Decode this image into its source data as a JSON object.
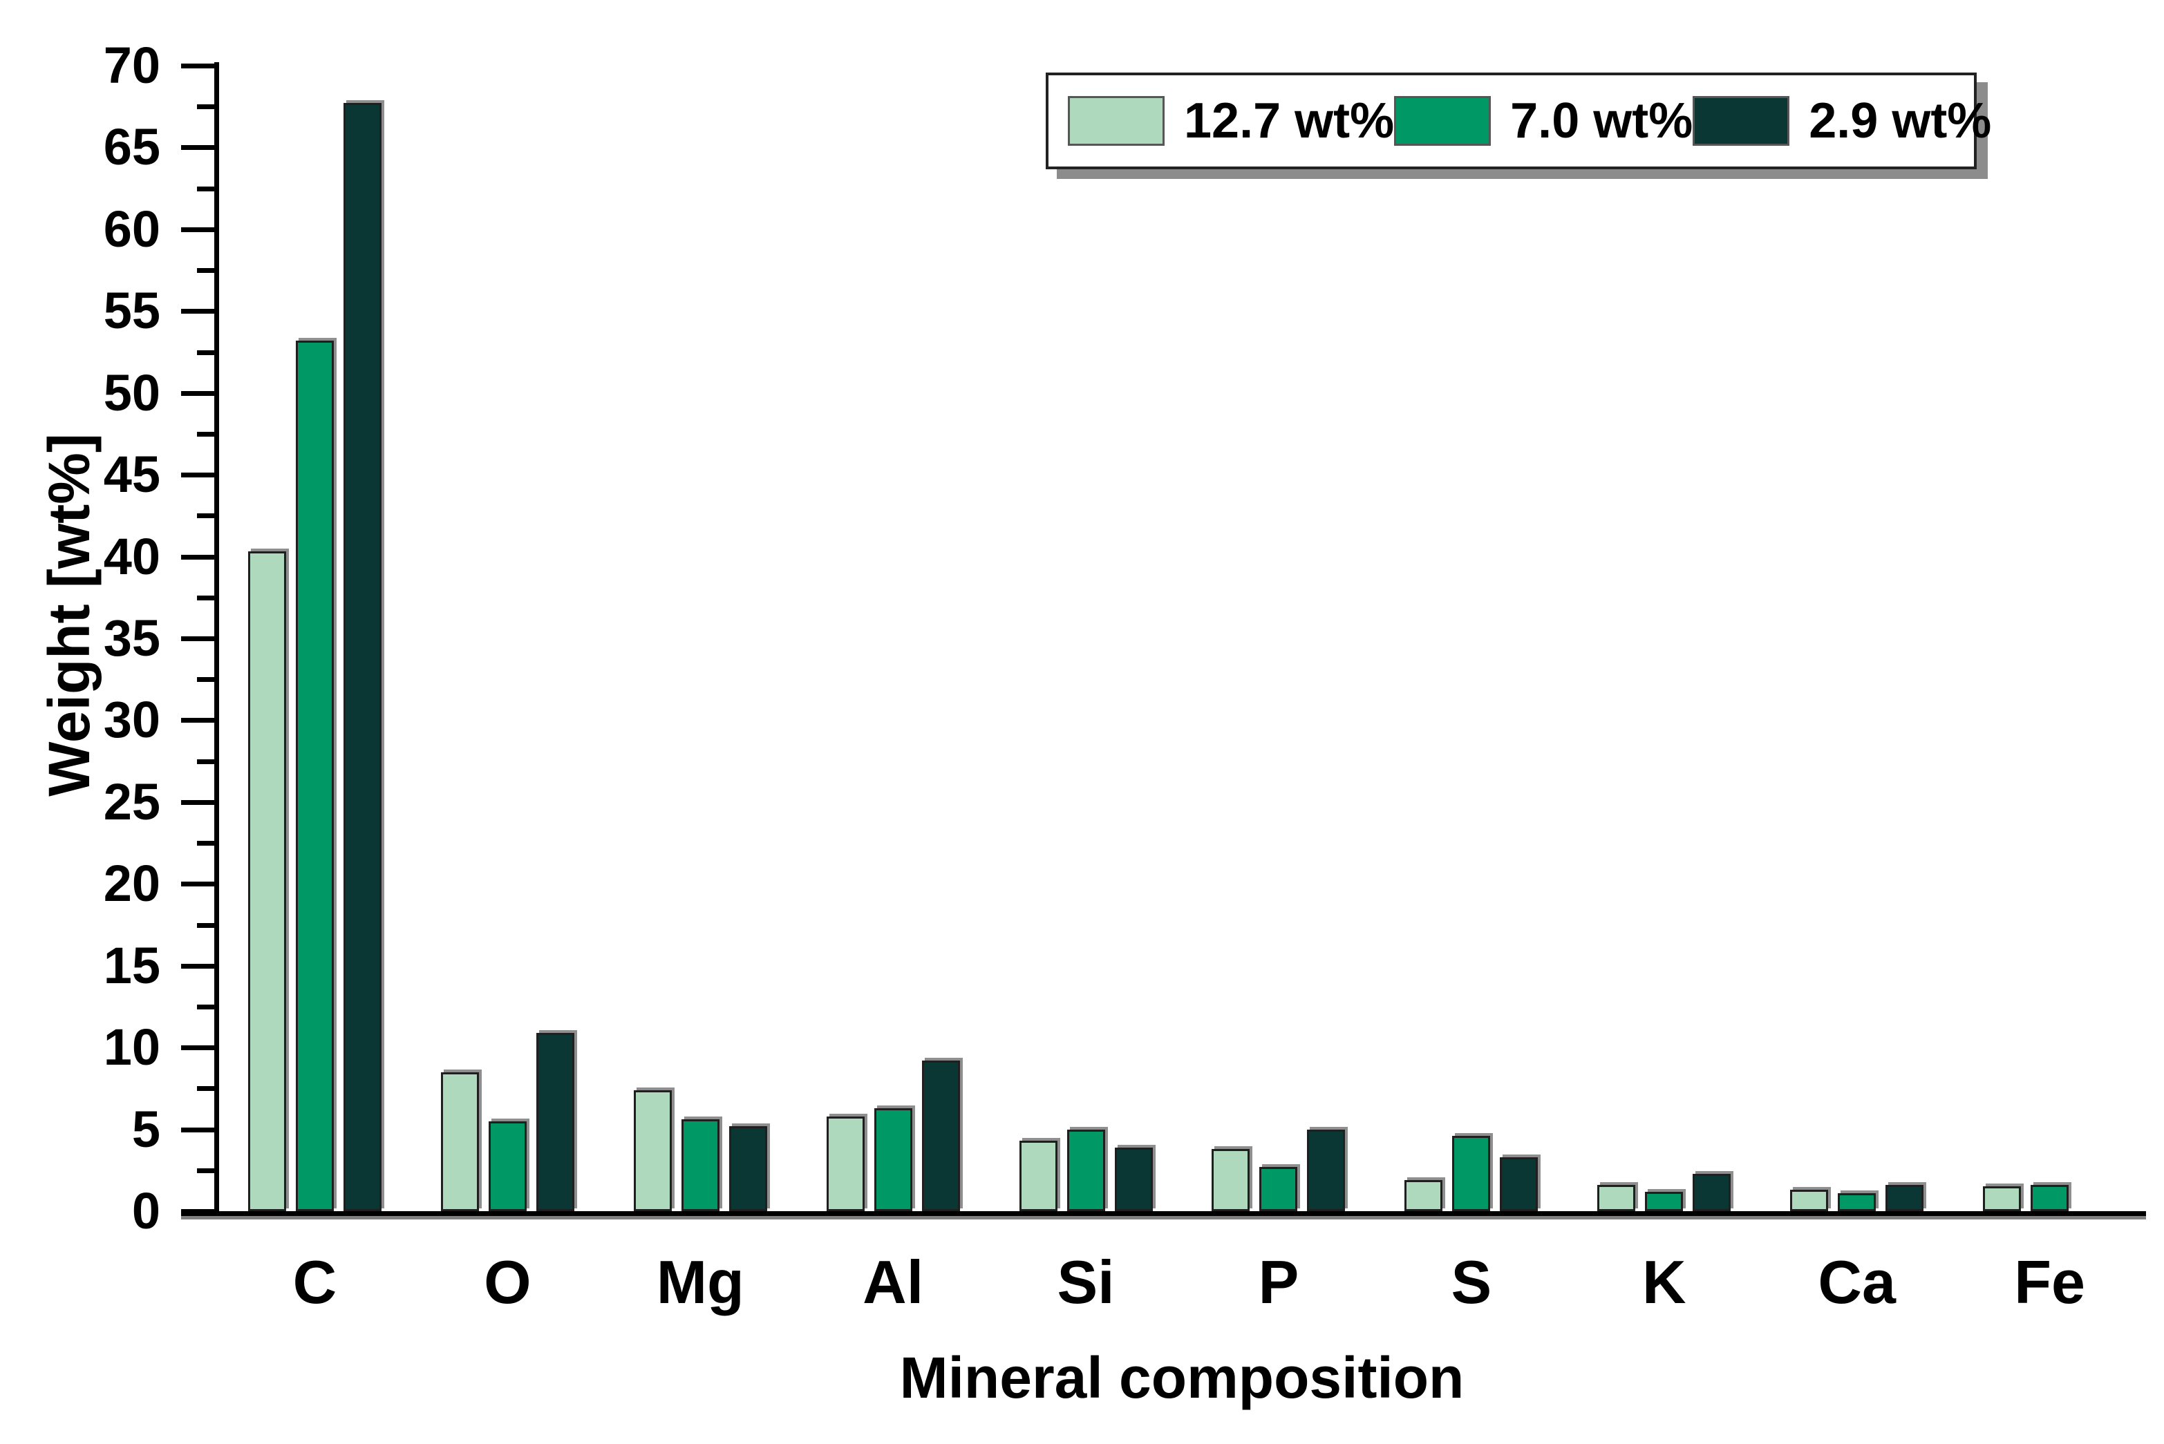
{
  "colors": {
    "series_light": "#aed9bd",
    "series_medium": "#009966",
    "series_dark": "#0a3733",
    "bar_border": "#1f1f1f",
    "bar_top_shadow": "#8f8f8f",
    "axis": "#000000",
    "baseline_shadow": "#808080",
    "legend_shadow": "#8c8c8c"
  },
  "legend": {
    "items": [
      {
        "label": "12.7 wt%",
        "color": "#aed9bd"
      },
      {
        "label": "7.0 wt%",
        "color": "#009966"
      },
      {
        "label": "2.9 wt%",
        "color": "#0a3733"
      }
    ]
  },
  "chart_data": {
    "type": "bar",
    "title": "",
    "xlabel": "Mineral composition",
    "ylabel": "Weight [wt%]",
    "ylim": [
      0,
      70
    ],
    "y_major_tick_step": 5,
    "y_minor_tick_step": 2.5,
    "grid": false,
    "legend_position": "top-right",
    "categories": [
      "C",
      "O",
      "Mg",
      "Al",
      "Si",
      "P",
      "S",
      "K",
      "Ca",
      "Fe"
    ],
    "series": [
      {
        "name": "12.7 wt%",
        "color": "#aed9bd",
        "values": [
          40.3,
          8.5,
          7.4,
          5.8,
          4.3,
          3.8,
          1.9,
          1.6,
          1.3,
          1.5
        ]
      },
      {
        "name": "7.0 wt%",
        "color": "#009966",
        "values": [
          53.2,
          5.5,
          5.6,
          6.3,
          5.0,
          2.7,
          4.6,
          1.2,
          1.1,
          1.6
        ]
      },
      {
        "name": "2.9 wt%",
        "color": "#0a3733",
        "values": [
          67.7,
          10.9,
          5.2,
          9.2,
          3.9,
          5.0,
          3.3,
          2.3,
          1.6,
          0
        ]
      }
    ]
  }
}
